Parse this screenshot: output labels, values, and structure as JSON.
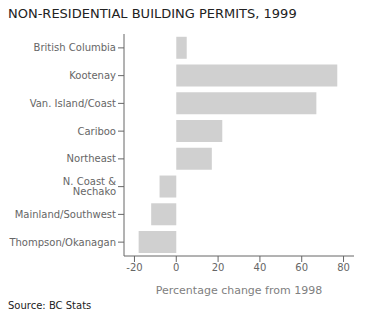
{
  "chart_data": {
    "type": "bar",
    "orientation": "horizontal",
    "title": "NON-RESIDENTIAL BUILDING PERMITS, 1999",
    "categories": [
      "Thompson/Okanagan",
      "Mainland/Southwest",
      "N. Coast & Nechako",
      "Northeast",
      "Cariboo",
      "Van. Island/Coast",
      "Kootenay",
      "British Columbia"
    ],
    "values": [
      -18,
      -12,
      -8,
      17,
      22,
      67,
      77,
      5
    ],
    "color": "#d0d0d0",
    "xlabel": "Percentage change from 1998",
    "xlim": [
      -25,
      85
    ],
    "xticks": [
      -20,
      0,
      20,
      40,
      60,
      80
    ],
    "grid": false,
    "annotations": [
      "Source: BC Stats"
    ]
  }
}
